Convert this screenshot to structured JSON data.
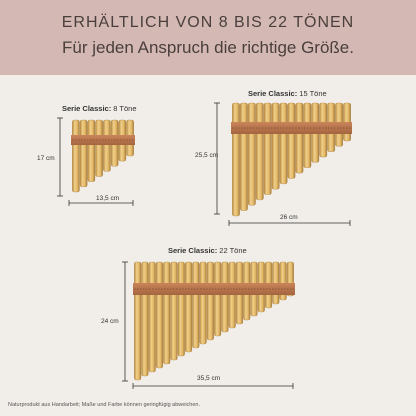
{
  "header": {
    "line1": "ERHÄLTLICH VON 8 BIS 22 TÖNEN",
    "line2": "Für jeden Anspruch die richtige Größe."
  },
  "pipes": [
    {
      "series_label": "Serie Classic:",
      "tones_label": "8 Töne",
      "tone_count": 8,
      "height_label": "17 cm",
      "width_label": "13,5 cm"
    },
    {
      "series_label": "Serie Classic:",
      "tones_label": "15 Töne",
      "tone_count": 15,
      "height_label": "25,5 cm",
      "width_label": "26 cm"
    },
    {
      "series_label": "Serie Classic:",
      "tones_label": "22 Töne",
      "tone_count": 22,
      "height_label": "24 cm",
      "width_label": "35,5 cm"
    }
  ],
  "footnote": "Naturprodukt aus Handarbeit; Maße und Farbe können geringfügig abweichen.",
  "colors": {
    "banner": "#d3b8b3",
    "background": "#f1eee9",
    "bamboo_light": "#e8c27a",
    "bamboo_dark": "#b98a3e",
    "band": "#b9764c"
  }
}
